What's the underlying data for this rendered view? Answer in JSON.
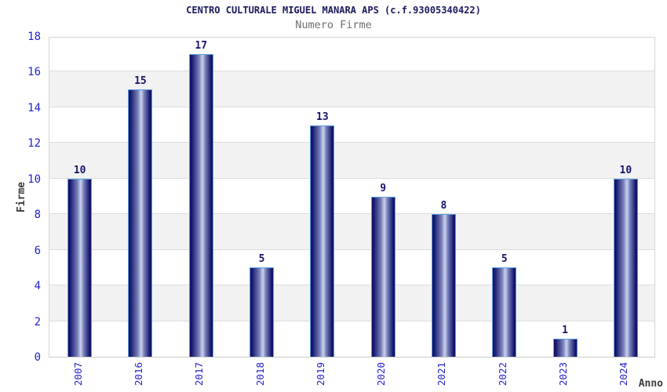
{
  "title": "CENTRO CULTURALE MIGUEL MANARA APS (c.f.93005340422)",
  "subtitle": "Numero Firme",
  "colors": {
    "title_text": "#1a1a5e",
    "subtitle_text": "#6e6e6e",
    "tick_label": "#2222cc",
    "axis_label": "#3c3c3c",
    "value_label": "#15156b",
    "bar_border": "#5b9fe0",
    "bar_dark": "#13136a",
    "bar_mid": "#7680b8",
    "bar_light": "#ccd3ee",
    "band_gray": "#f2f2f2",
    "gridline": "#dcdcdc",
    "plot_border": "#d6d6d6"
  },
  "chart_data": {
    "type": "bar",
    "categories": [
      "2007",
      "2016",
      "2017",
      "2018",
      "2019",
      "2020",
      "2021",
      "2022",
      "2023",
      "2024"
    ],
    "values": [
      10,
      15,
      17,
      5,
      13,
      9,
      8,
      5,
      1,
      10
    ],
    "title": "CENTRO CULTURALE MIGUEL MANARA APS (c.f.93005340422)",
    "subtitle": "Numero Firme",
    "xlabel": "Anno",
    "ylabel": "Firme",
    "ylim": [
      0,
      18
    ],
    "ytick_step": 2,
    "yticks": [
      0,
      2,
      4,
      6,
      8,
      10,
      12,
      14,
      16,
      18
    ],
    "grid": true,
    "legend": false,
    "bar_value_labels": true
  }
}
